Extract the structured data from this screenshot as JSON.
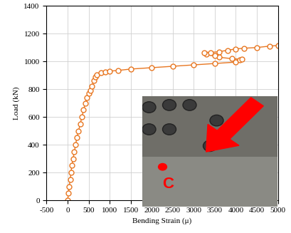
{
  "chart_data": {
    "type": "line",
    "x_label": "Bending Strain (μ)",
    "y_label": "Load (kN)",
    "annotations": [
      "C"
    ],
    "color": "#e87722",
    "marker": "o",
    "grid": true,
    "xlim": [
      -500,
      5000
    ],
    "xticks": [
      -500,
      0,
      500,
      1000,
      1500,
      2000,
      2500,
      3000,
      3500,
      4000,
      4500,
      5000
    ],
    "ylim": [
      0,
      1400
    ],
    "yticks": [
      0,
      200,
      400,
      600,
      800,
      1000,
      1200,
      1400
    ],
    "x": [
      0,
      20,
      40,
      60,
      80,
      100,
      130,
      160,
      190,
      220,
      260,
      300,
      340,
      380,
      420,
      460,
      500,
      540,
      580,
      620,
      660,
      700,
      800,
      900,
      1000,
      1200,
      1500,
      2000,
      2500,
      3000,
      3500,
      4000,
      4100,
      4150,
      3900,
      3600,
      3500,
      3300,
      3250,
      3400,
      3600,
      3800,
      4000,
      4200,
      4500,
      4800,
      5000
    ],
    "values": [
      0,
      50,
      100,
      150,
      200,
      250,
      300,
      350,
      400,
      450,
      500,
      550,
      600,
      650,
      700,
      740,
      770,
      790,
      820,
      860,
      890,
      905,
      920,
      925,
      930,
      935,
      945,
      955,
      965,
      975,
      985,
      995,
      1010,
      1015,
      1020,
      1030,
      1040,
      1050,
      1060,
      1065,
      1070,
      1080,
      1090,
      1095,
      1100,
      1110,
      1115
    ]
  }
}
